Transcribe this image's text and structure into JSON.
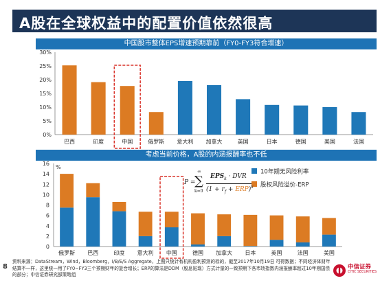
{
  "header": {
    "title": "A股在全球权益中的配置价值依然很高"
  },
  "section_bands": {
    "top": "中国股市整体EPS增速预期靠前（FY0-FY3符合增速）",
    "bottom": "考虑当前价格，A股的内涵报酬率也不低"
  },
  "formula": {
    "lhs": "P =",
    "sum_top": "∞",
    "sum_bottom": "k=0",
    "numerator": "EPS",
    "numerator_sub": "k",
    "numerator_rest": "· DVR",
    "den_prefix": "(1 + r",
    "den_sub": "f",
    "den_plus": " + ",
    "den_erp": "ERP",
    "den_suffix": ")",
    "den_exp": "k"
  },
  "footnote": "资料来源：DataStream，Wind，Bloomberg，I/B/E/S Aggregate，上图只统计有机构盈利预测的标的，截至2017年10月19日 可得数据；不同经济体财年结算不一样，这里统一用了FY0~FY3三个预期财年的复合增长；ERP的算法是DDM（股息贴现）方式计量的一致预期下各市场指数内涵报酬率超过10年期国债的部分；中信证券研究部策略组",
  "page_number": "8",
  "logo": {
    "cn": "中信证券",
    "en": "CITIC SECURITIES"
  },
  "colors": {
    "orange": "#dc7b23",
    "blue": "#1f78b8",
    "highlight": "#d9342b",
    "navy": "#1d3557"
  },
  "chart_data": [
    {
      "type": "bar",
      "categories": [
        "巴西",
        "印度",
        "中国",
        "俄罗斯",
        "意大利",
        "加拿大",
        "英国",
        "日本",
        "德国",
        "美国",
        "法国"
      ],
      "series": [
        {
          "values": [
            25.2,
            19.1,
            17.7,
            8.2,
            19.5,
            18.0,
            12.9,
            10.8,
            10.6,
            10.0,
            8.2
          ]
        }
      ],
      "bar_colors": [
        "orange",
        "orange",
        "orange",
        "orange",
        "blue",
        "blue",
        "blue",
        "blue",
        "blue",
        "blue",
        "blue"
      ],
      "highlighted_category": "中国",
      "ylim": [
        0,
        30
      ],
      "yticks": [
        "0%",
        "5%",
        "10%",
        "15%",
        "20%",
        "25%",
        "30%"
      ],
      "grid": false
    },
    {
      "type": "bar",
      "stacked": true,
      "categories": [
        "俄罗斯",
        "巴西",
        "印度",
        "意大利",
        "中国",
        "德国",
        "加拿大",
        "日本",
        "英国",
        "法国",
        "美国"
      ],
      "series": [
        {
          "name": "10年期无风险利率",
          "values": [
            7.5,
            9.5,
            6.8,
            2.0,
            3.7,
            0.4,
            2.0,
            0.1,
            1.3,
            0.8,
            2.3
          ]
        },
        {
          "name": "股权风险溢价-ERP",
          "values": [
            6.5,
            2.7,
            1.8,
            4.7,
            3.0,
            6.0,
            4.2,
            6.0,
            4.7,
            5.0,
            3.2
          ]
        }
      ],
      "highlighted_category": "中国",
      "ylim": [
        0,
        16
      ],
      "yticks": [
        "0",
        "2",
        "4",
        "6",
        "8",
        "10",
        "12",
        "14",
        "16"
      ],
      "yunit": "%",
      "legend_position": "top-right",
      "grid": false
    }
  ]
}
